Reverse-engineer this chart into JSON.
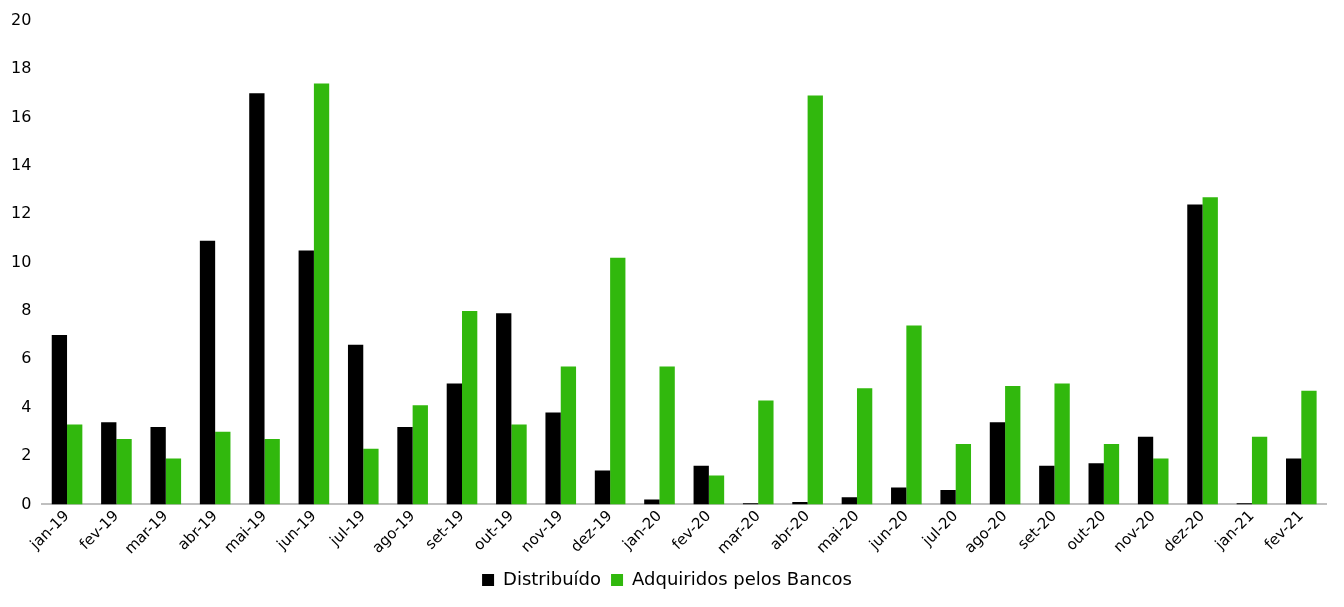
{
  "chart_data": {
    "type": "bar",
    "categories": [
      "jan-19",
      "fev-19",
      "mar-19",
      "abr-19",
      "mai-19",
      "jun-19",
      "jul-19",
      "ago-19",
      "set-19",
      "out-19",
      "nov-19",
      "dez-19",
      "jan-20",
      "fev-20",
      "mar-20",
      "abr-20",
      "mai-20",
      "jun-20",
      "jul-20",
      "ago-20",
      "set-20",
      "out-20",
      "nov-20",
      "dez-20",
      "jan-21",
      "fev-21"
    ],
    "series": [
      {
        "name": "Distribuído",
        "color": "#000000",
        "values": [
          7.0,
          3.4,
          3.2,
          10.9,
          17.0,
          10.5,
          6.6,
          3.2,
          5.0,
          7.9,
          3.8,
          1.4,
          0.2,
          1.6,
          0.05,
          0.1,
          0.3,
          0.7,
          0.6,
          3.4,
          1.6,
          1.7,
          2.8,
          12.4,
          0.05,
          1.9
        ]
      },
      {
        "name": "Adquiridos pelos Bancos",
        "color": "#31b80d",
        "values": [
          3.3,
          2.7,
          1.9,
          3.0,
          2.7,
          17.4,
          2.3,
          4.1,
          8.0,
          3.3,
          5.7,
          10.2,
          5.7,
          1.2,
          4.3,
          16.9,
          4.8,
          7.4,
          2.5,
          4.9,
          5.0,
          2.5,
          1.9,
          12.7,
          2.8,
          4.7
        ]
      }
    ],
    "ylim": [
      0,
      20
    ],
    "yticks": [
      0,
      2,
      4,
      6,
      8,
      10,
      12,
      14,
      16,
      18,
      20
    ],
    "grid": false,
    "legend": "bottom"
  }
}
